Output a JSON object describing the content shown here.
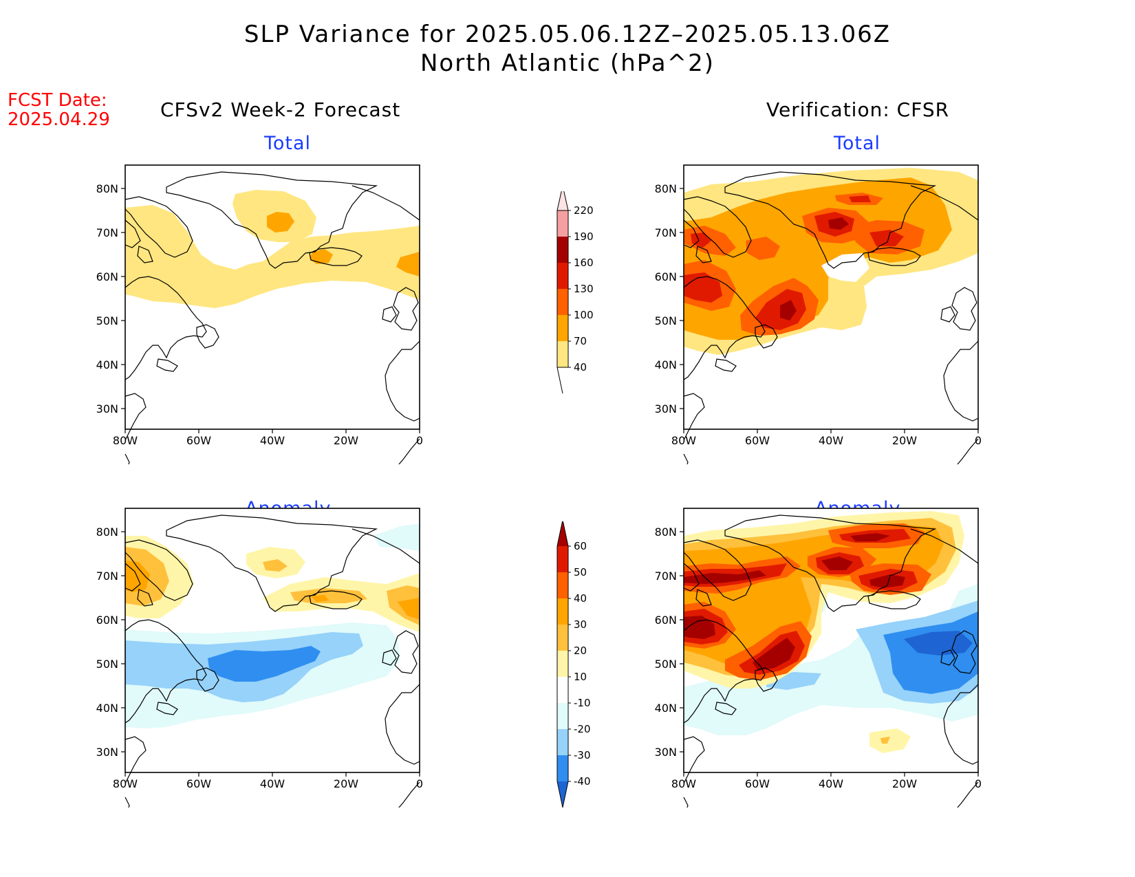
{
  "header": {
    "title_line1": "SLP Variance for 2025.05.06.12Z–2025.05.13.06Z",
    "title_line2": "North Atlantic (hPa^2)"
  },
  "fcst_date": {
    "label": "FCST Date:",
    "value": "2025.04.29"
  },
  "columns": {
    "left": "CFSv2 Week-2 Forecast",
    "right": "Verification: CFSR"
  },
  "panels": [
    {
      "id": "fcst-total",
      "title": "Total"
    },
    {
      "id": "verif-total",
      "title": "Total"
    },
    {
      "id": "fcst-anom",
      "title": "Anomaly"
    },
    {
      "id": "verif-anom",
      "title": "Anomaly"
    }
  ],
  "axes": {
    "lon_labels": [
      "80W",
      "60W",
      "40W",
      "20W",
      "0"
    ],
    "lat_labels": [
      "80N",
      "70N",
      "60N",
      "50N",
      "40N",
      "30N"
    ]
  },
  "colorbars": {
    "total": {
      "labels": [
        "40",
        "70",
        "100",
        "130",
        "160",
        "190",
        "220"
      ],
      "colors": [
        "#ffe680",
        "#ffa500",
        "#ff6000",
        "#e01a00",
        "#a50000",
        "#f4a0a0",
        "#fde3e3"
      ]
    },
    "anomaly": {
      "labels": [
        "-40",
        "-30",
        "-20",
        "-10",
        "10",
        "20",
        "30",
        "40",
        "50",
        "60"
      ],
      "colors": [
        "#1e64d2",
        "#2f8ef0",
        "#96d2fa",
        "#e1fafa",
        "#ffffff",
        "#fff5a8",
        "#ffc03c",
        "#ffa500",
        "#ff6000",
        "#e01a00",
        "#a50000"
      ]
    }
  }
}
